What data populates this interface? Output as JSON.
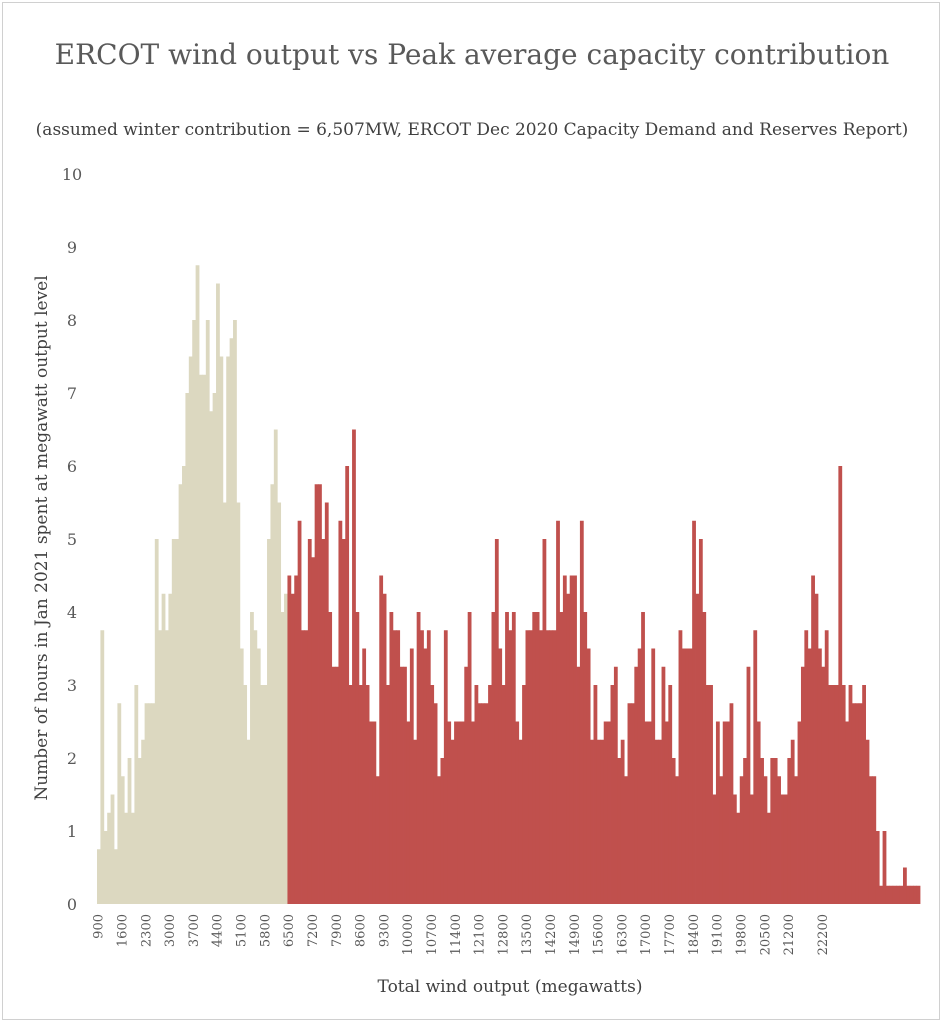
{
  "chart_data": {
    "type": "bar",
    "title": "ERCOT wind output vs Peak average capacity contribution",
    "subtitle": "(assumed winter contribution = 6,507MW, ERCOT Dec 2020 Capacity Demand and Reserves Report)",
    "xlabel": "Total wind output (megawatts)",
    "ylabel": "Number of hours in Jan 2021 spent at megawatt output level",
    "ylim": [
      0,
      10
    ],
    "yticks": [
      "0",
      "1",
      "2",
      "3",
      "4",
      "5",
      "6",
      "7",
      "8",
      "9",
      "10"
    ],
    "bin_width": 100,
    "x_start": 900,
    "x_end": 22300,
    "x_ticklabels": [
      "900",
      "1600",
      "2300",
      "3000",
      "3700",
      "4400",
      "5100",
      "5800",
      "6500",
      "7200",
      "7900",
      "8600",
      "9300",
      "10000",
      "10700",
      "11400",
      "12100",
      "12800",
      "13500",
      "14200",
      "14900",
      "15600",
      "16300",
      "17000",
      "17700",
      "18400",
      "19100",
      "19800",
      "20500",
      "21200",
      "22200"
    ],
    "threshold": 6500,
    "colors": {
      "below": "#dcd8c0",
      "above": "#c0504d"
    },
    "values": [
      0.75,
      3.75,
      1.0,
      1.25,
      1.5,
      0.75,
      2.75,
      1.75,
      1.25,
      2.0,
      1.25,
      3.0,
      2.0,
      2.25,
      2.75,
      2.75,
      2.75,
      5.0,
      3.75,
      4.25,
      3.75,
      4.25,
      5.0,
      5.0,
      5.75,
      6.0,
      7.0,
      7.5,
      8.0,
      8.75,
      7.25,
      7.25,
      8.0,
      6.75,
      7.0,
      8.5,
      7.5,
      5.5,
      7.5,
      7.75,
      8.0,
      5.5,
      3.5,
      3.0,
      2.25,
      4.0,
      3.75,
      3.5,
      3.0,
      3.0,
      5.0,
      5.75,
      6.5,
      5.5,
      4.0,
      4.25,
      4.5,
      4.25,
      4.5,
      5.25,
      3.75,
      3.75,
      5.0,
      4.75,
      5.75,
      5.75,
      5.0,
      5.5,
      4.0,
      3.25,
      3.25,
      5.25,
      5.0,
      6.0,
      3.0,
      6.5,
      4.0,
      3.0,
      3.5,
      3.0,
      2.5,
      2.5,
      1.75,
      4.5,
      4.25,
      3.0,
      4.0,
      3.75,
      3.75,
      3.25,
      3.25,
      2.5,
      3.5,
      2.25,
      4.0,
      3.75,
      3.5,
      3.75,
      3.0,
      2.75,
      1.75,
      2.0,
      3.75,
      2.5,
      2.25,
      2.5,
      2.5,
      2.5,
      3.25,
      4.0,
      2.5,
      3.0,
      2.75,
      2.75,
      2.75,
      3.0,
      4.0,
      5.0,
      3.5,
      3.0,
      4.0,
      3.75,
      4.0,
      2.5,
      2.25,
      3.0,
      3.75,
      3.75,
      4.0,
      4.0,
      3.75,
      5.0,
      3.75,
      3.75,
      3.75,
      5.25,
      4.0,
      4.5,
      4.25,
      4.5,
      4.5,
      3.25,
      5.25,
      4.0,
      3.5,
      2.25,
      3.0,
      2.25,
      2.25,
      2.5,
      2.5,
      3.0,
      3.25,
      2.0,
      2.25,
      1.75,
      2.75,
      2.75,
      3.25,
      3.5,
      4.0,
      2.5,
      2.5,
      3.5,
      2.25,
      2.25,
      3.25,
      2.5,
      3.0,
      2.0,
      1.75,
      3.75,
      3.5,
      3.5,
      3.5,
      5.25,
      4.25,
      5.0,
      4.0,
      3.0,
      3.0,
      1.5,
      2.5,
      1.75,
      2.5,
      2.5,
      2.75,
      1.5,
      1.25,
      1.75,
      2.0,
      3.25,
      1.5,
      3.75,
      2.5,
      2.0,
      1.75,
      1.25,
      2.0,
      2.0,
      1.75,
      1.5,
      1.5,
      2.0,
      2.25,
      1.75,
      2.5,
      3.25,
      3.75,
      3.5,
      4.5,
      4.25,
      3.5,
      3.25,
      3.75,
      3.0,
      3.0,
      3.0,
      6.0,
      3.0,
      2.5,
      3.0,
      2.75,
      2.75,
      2.75,
      3.0,
      2.25,
      1.75,
      1.75,
      1.0,
      0.25,
      1.0,
      0.25,
      0.25,
      0.25,
      0.25,
      0.25,
      0.5,
      0.25,
      0.25,
      0.25,
      0.25
    ]
  }
}
